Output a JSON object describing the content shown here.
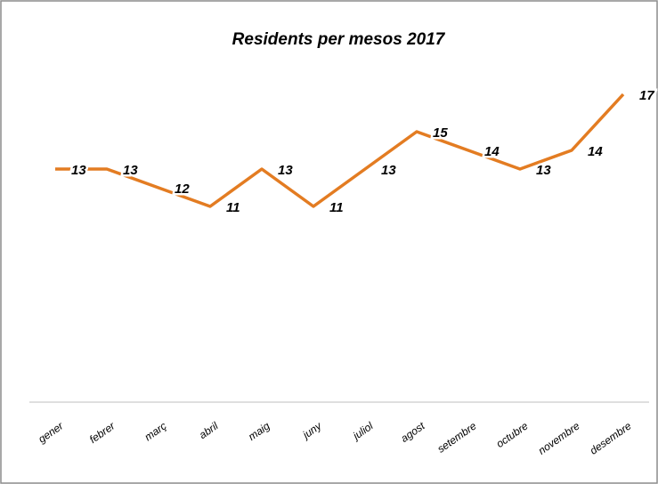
{
  "chart_data": {
    "type": "line",
    "title": "Residents per mesos 2017",
    "categories": [
      "gener",
      "febrer",
      "març",
      "abril",
      "maig",
      "juny",
      "juliol",
      "agost",
      "setembre",
      "octubre",
      "novembre",
      "desembre"
    ],
    "values": [
      13,
      13,
      12,
      11,
      13,
      11,
      13,
      15,
      14,
      13,
      14,
      17
    ],
    "color": "#e37c22",
    "ylim": [
      0,
      20
    ]
  }
}
